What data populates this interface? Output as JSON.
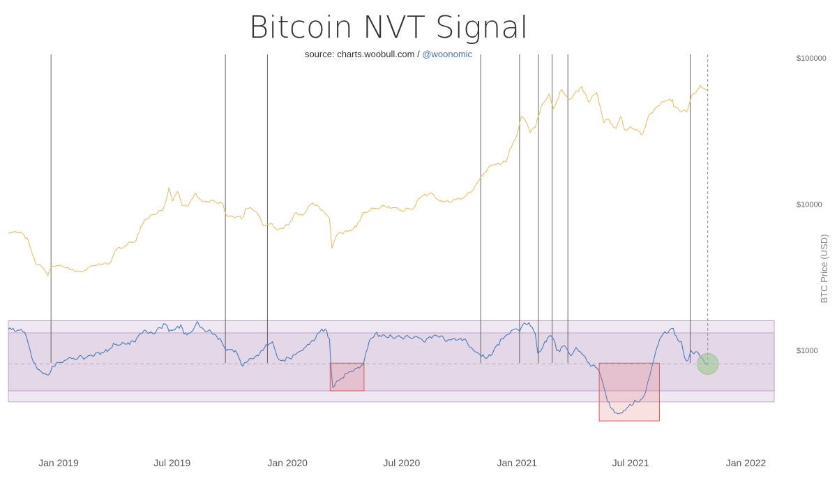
{
  "chart_data": {
    "type": "line",
    "title": "Bitcoin NVT Signal",
    "subtitle_prefix": "source: charts.woobull.com / ",
    "subtitle_handle": "@woonomic",
    "ylabel": "BTC Price (USD)",
    "y_scale": "log",
    "y_range_usd": [
      220,
      200000
    ],
    "x_range": [
      "2018-10-13",
      "2022-02-15"
    ],
    "x_ticks": [
      {
        "date": "2019-01-01",
        "label": "Jan 2019"
      },
      {
        "date": "2019-07-01",
        "label": "Jul 2019"
      },
      {
        "date": "2020-01-01",
        "label": "Jan 2020"
      },
      {
        "date": "2020-07-01",
        "label": "Jul 2020"
      },
      {
        "date": "2021-01-01",
        "label": "Jan 2021"
      },
      {
        "date": "2021-07-01",
        "label": "Jul 2021"
      },
      {
        "date": "2022-01-01",
        "label": "Jan 2022"
      }
    ],
    "y_ticks": [
      {
        "value": 100000,
        "label": "$100000"
      },
      {
        "value": 10000,
        "label": "$10000"
      },
      {
        "value": 1000,
        "label": "$1000"
      }
    ],
    "series": [
      {
        "name": "BTC Price",
        "color": "#e8c06a",
        "points": [
          [
            "2018-10-13",
            6400
          ],
          [
            "2018-10-25",
            6450
          ],
          [
            "2018-11-05",
            6300
          ],
          [
            "2018-11-14",
            5600
          ],
          [
            "2018-11-20",
            4600
          ],
          [
            "2018-11-26",
            3900
          ],
          [
            "2018-12-06",
            3700
          ],
          [
            "2018-12-15",
            3250
          ],
          [
            "2018-12-20",
            3700
          ],
          [
            "2018-12-28",
            3800
          ],
          [
            "2019-01-05",
            3850
          ],
          [
            "2019-01-15",
            3700
          ],
          [
            "2019-01-25",
            3550
          ],
          [
            "2019-02-05",
            3450
          ],
          [
            "2019-02-12",
            3550
          ],
          [
            "2019-02-25",
            3800
          ],
          [
            "2019-03-10",
            3850
          ],
          [
            "2019-03-25",
            4000
          ],
          [
            "2019-04-03",
            4900
          ],
          [
            "2019-04-20",
            5300
          ],
          [
            "2019-05-05",
            5700
          ],
          [
            "2019-05-12",
            7000
          ],
          [
            "2019-05-18",
            7800
          ],
          [
            "2019-06-01",
            8500
          ],
          [
            "2019-06-15",
            9000
          ],
          [
            "2019-06-22",
            10800
          ],
          [
            "2019-06-26",
            13000
          ],
          [
            "2019-07-02",
            10500
          ],
          [
            "2019-07-10",
            12200
          ],
          [
            "2019-07-17",
            9800
          ],
          [
            "2019-07-27",
            9800
          ],
          [
            "2019-08-06",
            11800
          ],
          [
            "2019-08-20",
            10400
          ],
          [
            "2019-09-05",
            10600
          ],
          [
            "2019-09-20",
            10100
          ],
          [
            "2019-09-25",
            8500
          ],
          [
            "2019-10-05",
            8200
          ],
          [
            "2019-10-22",
            8100
          ],
          [
            "2019-10-26",
            9300
          ],
          [
            "2019-11-05",
            9300
          ],
          [
            "2019-11-15",
            8500
          ],
          [
            "2019-11-25",
            7100
          ],
          [
            "2019-12-05",
            7400
          ],
          [
            "2019-12-18",
            6700
          ],
          [
            "2020-01-01",
            7200
          ],
          [
            "2020-01-15",
            8800
          ],
          [
            "2020-01-25",
            8400
          ],
          [
            "2020-02-10",
            10200
          ],
          [
            "2020-02-20",
            9600
          ],
          [
            "2020-03-01",
            8600
          ],
          [
            "2020-03-08",
            8000
          ],
          [
            "2020-03-12",
            5000
          ],
          [
            "2020-03-20",
            6200
          ],
          [
            "2020-04-01",
            6500
          ],
          [
            "2020-04-20",
            7000
          ],
          [
            "2020-05-01",
            8800
          ],
          [
            "2020-05-20",
            9400
          ],
          [
            "2020-06-10",
            9700
          ],
          [
            "2020-06-30",
            9100
          ],
          [
            "2020-07-20",
            9300
          ],
          [
            "2020-07-28",
            11000
          ],
          [
            "2020-08-15",
            11900
          ],
          [
            "2020-09-05",
            10300
          ],
          [
            "2020-09-25",
            10700
          ],
          [
            "2020-10-10",
            11300
          ],
          [
            "2020-10-25",
            13000
          ],
          [
            "2020-11-05",
            15500
          ],
          [
            "2020-11-20",
            18500
          ],
          [
            "2020-12-01",
            19000
          ],
          [
            "2020-12-15",
            19500
          ],
          [
            "2020-12-20",
            23500
          ],
          [
            "2020-12-31",
            29000
          ],
          [
            "2021-01-08",
            40000
          ],
          [
            "2021-01-15",
            37000
          ],
          [
            "2021-01-22",
            31000
          ],
          [
            "2021-01-30",
            33500
          ],
          [
            "2021-02-08",
            46000
          ],
          [
            "2021-02-21",
            57000
          ],
          [
            "2021-02-28",
            45000
          ],
          [
            "2021-03-13",
            61000
          ],
          [
            "2021-03-25",
            52000
          ],
          [
            "2021-04-14",
            64000
          ],
          [
            "2021-04-25",
            50000
          ],
          [
            "2021-05-08",
            58000
          ],
          [
            "2021-05-12",
            49000
          ],
          [
            "2021-05-19",
            36000
          ],
          [
            "2021-05-25",
            38000
          ],
          [
            "2021-06-08",
            33000
          ],
          [
            "2021-06-15",
            40000
          ],
          [
            "2021-06-22",
            32000
          ],
          [
            "2021-07-01",
            34000
          ],
          [
            "2021-07-20",
            30000
          ],
          [
            "2021-07-31",
            41000
          ],
          [
            "2021-08-14",
            47000
          ],
          [
            "2021-08-23",
            50000
          ],
          [
            "2021-09-06",
            52000
          ],
          [
            "2021-09-08",
            46000
          ],
          [
            "2021-09-20",
            43000
          ],
          [
            "2021-09-30",
            44000
          ],
          [
            "2021-10-06",
            55000
          ],
          [
            "2021-10-16",
            61000
          ],
          [
            "2021-10-20",
            65000
          ],
          [
            "2021-10-28",
            61000
          ],
          [
            "2021-11-01",
            61500
          ]
        ]
      },
      {
        "name": "NVT Signal",
        "color": "#4a7ab7",
        "points": [
          [
            "2018-10-13",
            1390
          ],
          [
            "2018-10-28",
            1380
          ],
          [
            "2018-11-08",
            1330
          ],
          [
            "2018-11-14",
            1100
          ],
          [
            "2018-11-22",
            830
          ],
          [
            "2018-12-01",
            740
          ],
          [
            "2018-12-10",
            700
          ],
          [
            "2018-12-16",
            680
          ],
          [
            "2018-12-22",
            780
          ],
          [
            "2019-01-05",
            830
          ],
          [
            "2019-01-15",
            870
          ],
          [
            "2019-02-01",
            890
          ],
          [
            "2019-02-15",
            900
          ],
          [
            "2019-03-01",
            960
          ],
          [
            "2019-03-15",
            980
          ],
          [
            "2019-04-01",
            1100
          ],
          [
            "2019-04-15",
            1120
          ],
          [
            "2019-05-01",
            1150
          ],
          [
            "2019-05-10",
            1300
          ],
          [
            "2019-05-20",
            1370
          ],
          [
            "2019-06-01",
            1300
          ],
          [
            "2019-06-12",
            1430
          ],
          [
            "2019-06-20",
            1520
          ],
          [
            "2019-06-26",
            1350
          ],
          [
            "2019-07-05",
            1380
          ],
          [
            "2019-07-15",
            1500
          ],
          [
            "2019-07-20",
            1300
          ],
          [
            "2019-08-01",
            1350
          ],
          [
            "2019-08-10",
            1580
          ],
          [
            "2019-08-20",
            1400
          ],
          [
            "2019-09-01",
            1350
          ],
          [
            "2019-09-10",
            1250
          ],
          [
            "2019-09-20",
            1100
          ],
          [
            "2019-09-26",
            1000
          ],
          [
            "2019-10-10",
            1000
          ],
          [
            "2019-10-22",
            780
          ],
          [
            "2019-10-30",
            850
          ],
          [
            "2019-11-10",
            900
          ],
          [
            "2019-11-20",
            1000
          ],
          [
            "2019-11-28",
            1100
          ],
          [
            "2019-12-08",
            1150
          ],
          [
            "2019-12-18",
            870
          ],
          [
            "2019-12-25",
            860
          ],
          [
            "2020-01-05",
            880
          ],
          [
            "2020-01-15",
            950
          ],
          [
            "2020-01-25",
            1000
          ],
          [
            "2020-02-05",
            1100
          ],
          [
            "2020-02-15",
            1220
          ],
          [
            "2020-02-22",
            1350
          ],
          [
            "2020-03-01",
            1400
          ],
          [
            "2020-03-08",
            1200
          ],
          [
            "2020-03-10",
            820
          ],
          [
            "2020-03-13",
            560
          ],
          [
            "2020-03-20",
            620
          ],
          [
            "2020-03-28",
            650
          ],
          [
            "2020-04-06",
            700
          ],
          [
            "2020-04-15",
            720
          ],
          [
            "2020-04-25",
            760
          ],
          [
            "2020-05-01",
            800
          ],
          [
            "2020-05-10",
            1150
          ],
          [
            "2020-05-20",
            1300
          ],
          [
            "2020-06-01",
            1280
          ],
          [
            "2020-06-15",
            1250
          ],
          [
            "2020-07-01",
            1230
          ],
          [
            "2020-07-15",
            1220
          ],
          [
            "2020-07-25",
            1250
          ],
          [
            "2020-08-05",
            1150
          ],
          [
            "2020-08-20",
            1250
          ],
          [
            "2020-09-01",
            1250
          ],
          [
            "2020-09-10",
            1150
          ],
          [
            "2020-09-20",
            1200
          ],
          [
            "2020-10-01",
            1200
          ],
          [
            "2020-10-10",
            1200
          ],
          [
            "2020-10-20",
            1050
          ],
          [
            "2020-11-01",
            950
          ],
          [
            "2020-11-10",
            900
          ],
          [
            "2020-11-20",
            920
          ],
          [
            "2020-12-01",
            1100
          ],
          [
            "2020-12-10",
            1200
          ],
          [
            "2020-12-20",
            1300
          ],
          [
            "2020-12-28",
            1400
          ],
          [
            "2021-01-05",
            1350
          ],
          [
            "2021-01-10",
            1500
          ],
          [
            "2021-01-20",
            1550
          ],
          [
            "2021-01-25",
            1450
          ],
          [
            "2021-01-30",
            1300
          ],
          [
            "2021-02-03",
            960
          ],
          [
            "2021-02-08",
            1000
          ],
          [
            "2021-02-14",
            1150
          ],
          [
            "2021-02-21",
            1250
          ],
          [
            "2021-02-28",
            1200
          ],
          [
            "2021-03-05",
            1000
          ],
          [
            "2021-03-10",
            980
          ],
          [
            "2021-03-15",
            1070
          ],
          [
            "2021-03-20",
            1050
          ],
          [
            "2021-03-28",
            920
          ],
          [
            "2021-04-05",
            1050
          ],
          [
            "2021-04-12",
            980
          ],
          [
            "2021-04-20",
            900
          ],
          [
            "2021-04-26",
            820
          ],
          [
            "2021-05-01",
            790
          ],
          [
            "2021-05-06",
            770
          ],
          [
            "2021-05-12",
            720
          ],
          [
            "2021-05-19",
            570
          ],
          [
            "2021-05-25",
            450
          ],
          [
            "2021-06-01",
            400
          ],
          [
            "2021-06-10",
            370
          ],
          [
            "2021-06-20",
            390
          ],
          [
            "2021-06-30",
            430
          ],
          [
            "2021-07-10",
            450
          ],
          [
            "2021-07-20",
            470
          ],
          [
            "2021-07-25",
            520
          ],
          [
            "2021-08-01",
            680
          ],
          [
            "2021-08-08",
            900
          ],
          [
            "2021-08-14",
            1100
          ],
          [
            "2021-08-22",
            1300
          ],
          [
            "2021-09-01",
            1380
          ],
          [
            "2021-09-07",
            1420
          ],
          [
            "2021-09-12",
            1250
          ],
          [
            "2021-09-20",
            1150
          ],
          [
            "2021-09-25",
            900
          ],
          [
            "2021-09-30",
            850
          ],
          [
            "2021-10-05",
            1000
          ],
          [
            "2021-10-10",
            950
          ],
          [
            "2021-10-15",
            980
          ],
          [
            "2021-10-20",
            900
          ],
          [
            "2021-10-27",
            820
          ],
          [
            "2021-11-01",
            800
          ]
        ]
      }
    ],
    "bands_usd": {
      "outer": [
        445,
        1600
      ],
      "inner": [
        530,
        1320
      ],
      "midline": 810
    },
    "signal_dates": [
      "2018-12-20",
      "2019-09-24",
      "2019-11-30",
      "2020-11-04",
      "2021-01-05",
      "2021-02-04",
      "2021-02-26",
      "2021-03-23",
      "2021-10-04"
    ],
    "current_date": "2021-11-01",
    "highlight_boxes": [
      {
        "from": "2020-03-09",
        "to": "2020-05-02",
        "y_usd": [
          530,
          820
        ]
      },
      {
        "from": "2021-05-12",
        "to": "2021-08-16",
        "y_usd": [
          330,
          820
        ]
      }
    ],
    "current_marker": {
      "date": "2021-11-01",
      "y_usd": 810
    },
    "colors": {
      "price": "#e8c06a",
      "nvt": "#4a7ab7",
      "band_outer": "#efe7f1",
      "band_inner": "#e4d7e8",
      "band_line": "#b595c0",
      "signal": "#555555",
      "box_stroke": "#dc5a5a",
      "box_fill": "rgba(230,120,120,0.22)",
      "marker": "rgba(150,200,140,0.55)",
      "handle": "#4a6fa5"
    }
  }
}
